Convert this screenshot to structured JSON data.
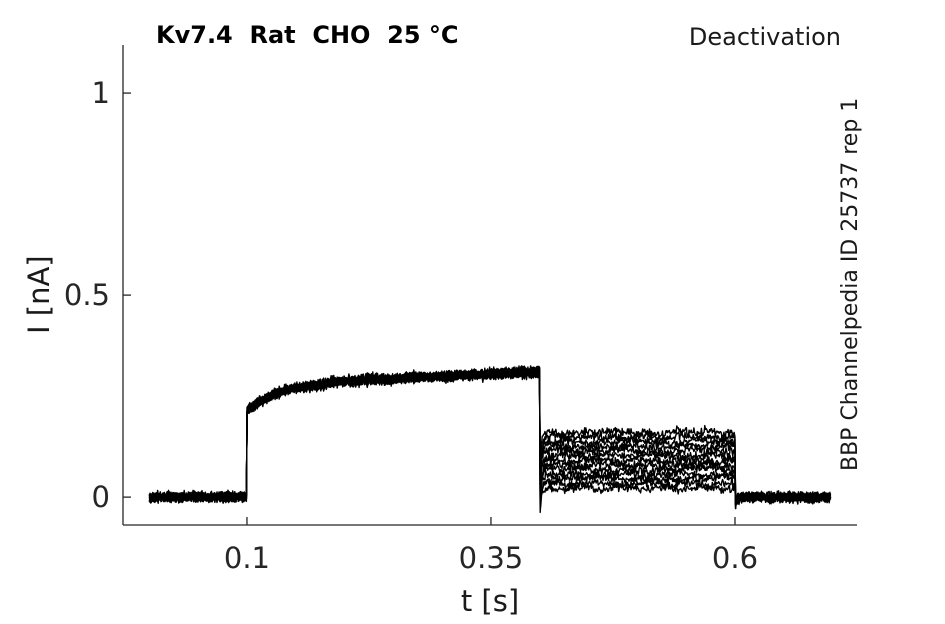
{
  "chart_data": {
    "type": "line",
    "title": "Kv7.4  Rat  CHO  25 °C",
    "annotation": "Deactivation",
    "watermark": "BBP Channelpedia ID 25737 rep 1",
    "xlabel": "t [s]",
    "ylabel": "I [nA]",
    "xlim": [
      -0.027,
      0.725
    ],
    "ylim": [
      -0.069,
      1.119
    ],
    "xticks": [
      0.1,
      0.35,
      0.6
    ],
    "xtick_labels": [
      "0.1",
      "0.35",
      "0.6"
    ],
    "yticks": [
      0,
      0.5,
      1
    ],
    "ytick_labels": [
      "0",
      "0.5",
      "1"
    ],
    "grid": false,
    "legend": null,
    "line_color": "#000000",
    "axis_color": "#262626",
    "text_color": "#1a1a1a",
    "background_color": "#ffffff",
    "protocol": {
      "description": "Voltage-clamp deactivation protocol, 13 overlaid current sweeps",
      "t_start_s": 0.0,
      "t_step_on_s": 0.1,
      "t_step_off_s": 0.4,
      "t_pulse_end_s": 0.6,
      "t_end_s": 0.698,
      "baseline_nA": 0.0,
      "activation_fast_jump_nA": 0.213,
      "activation_exp_amplitude_nA": 0.065,
      "activation_tau_s": 0.032,
      "activation_slow_creep_nA": 0.032,
      "plateau_peak_nA": 0.31,
      "deactivation_tail_levels_nA": [
        0.16,
        0.148,
        0.137,
        0.125,
        0.114,
        0.102,
        0.091,
        0.079,
        0.068,
        0.056,
        0.045,
        0.033,
        0.022
      ],
      "undershoot_at_step_off_nA": -0.055,
      "undershoot_at_pulse_end_nA": -0.035,
      "noise_sigma_nA": 0.0052,
      "rng_seed": 20257
    }
  }
}
